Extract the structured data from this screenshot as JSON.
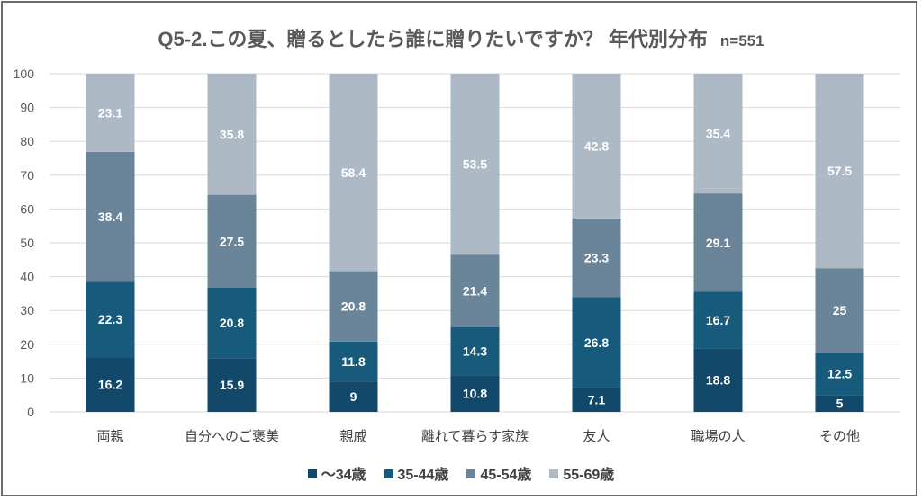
{
  "chart_data": {
    "type": "bar",
    "stacked": true,
    "title": "Q5-2.この夏、贈るとしたら誰に贈りたいですか？ 年代別分布",
    "subtitle": "n=551",
    "xlabel": "",
    "ylabel": "",
    "ylim": [
      0,
      100
    ],
    "yticks": [
      0,
      10,
      20,
      30,
      40,
      50,
      60,
      70,
      80,
      90,
      100
    ],
    "grid": true,
    "legend_position": "bottom",
    "categories": [
      "両親",
      "自分へのご褒美",
      "親戚",
      "離れて暮らす家族",
      "友人",
      "職場の人",
      "その他"
    ],
    "series": [
      {
        "name": "〜34歳",
        "color": "#12486a",
        "values": [
          16.2,
          15.9,
          9,
          10.8,
          7.1,
          18.8,
          5
        ]
      },
      {
        "name": "35-44歳",
        "color": "#175a7c",
        "values": [
          22.3,
          20.8,
          11.8,
          14.3,
          26.8,
          16.7,
          12.5
        ]
      },
      {
        "name": "45-54歳",
        "color": "#6a8499",
        "values": [
          38.4,
          27.5,
          20.8,
          21.4,
          23.3,
          29.1,
          25
        ]
      },
      {
        "name": "55-69歳",
        "color": "#adb9c5",
        "values": [
          23.1,
          35.8,
          58.4,
          53.5,
          42.8,
          35.4,
          57.5
        ]
      }
    ]
  }
}
